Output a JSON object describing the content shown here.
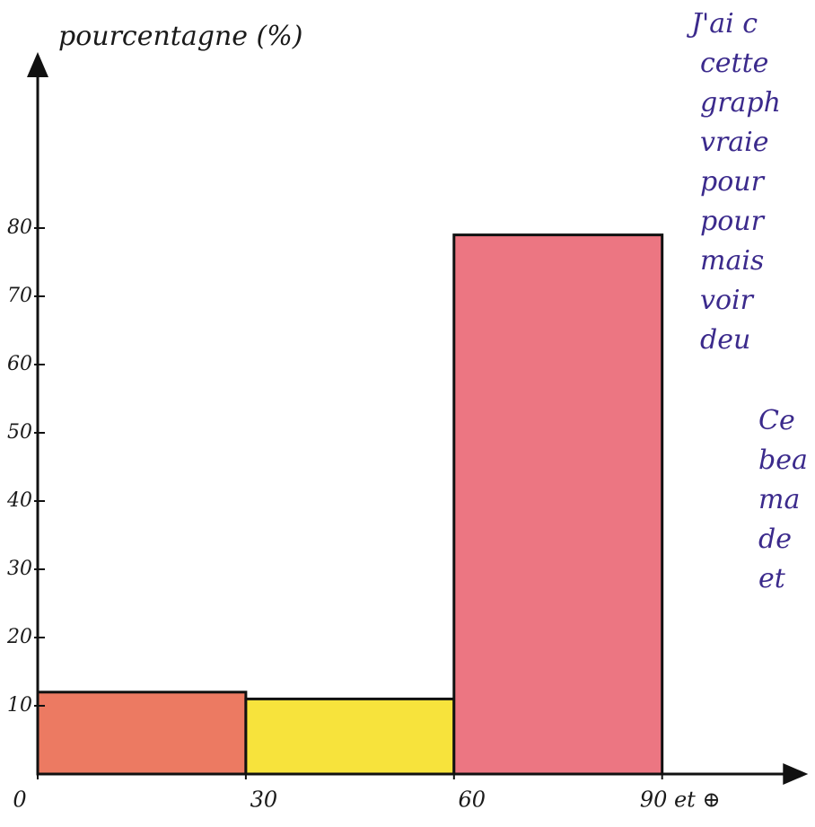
{
  "chart_data": {
    "type": "histogram",
    "y_label": "pourcentagne (%)",
    "bins": [
      0,
      30,
      60,
      90
    ],
    "values": [
      12,
      11,
      79
    ],
    "colors": [
      "#ec7a62",
      "#f7e33c",
      "#ec7682"
    ],
    "xlim": [
      0,
      110
    ],
    "ylim": [
      0,
      105
    ],
    "xticks": [
      0,
      30,
      60,
      {
        "value": 90,
        "label": "90 et ⊕"
      }
    ],
    "yticks": [
      10,
      20,
      30,
      40,
      50,
      60,
      70,
      80
    ],
    "grid": false,
    "annotations": [
      {
        "lines": [
          "J'ai c",
          "cette",
          "graph",
          "vraie",
          "pour",
          "pour",
          "mais",
          "voir",
          "deu"
        ]
      },
      {
        "lines": [
          "Ce",
          "bea",
          "ma",
          "de",
          "et"
        ]
      }
    ]
  }
}
